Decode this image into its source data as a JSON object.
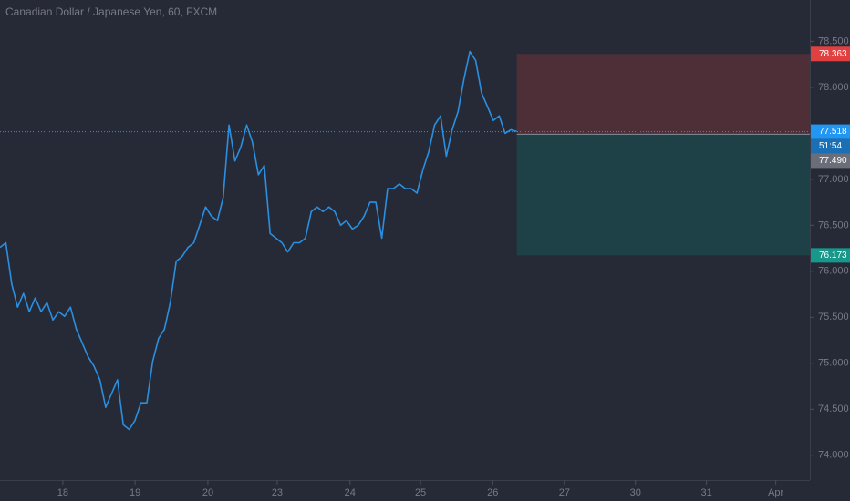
{
  "title": "Canadian Dollar / Japanese Yen, 60, FXCM",
  "chart_data": {
    "type": "line",
    "series": [
      {
        "name": "CADJPY",
        "color": "#2b8fe0",
        "values": [
          76.26,
          76.31,
          75.86,
          75.61,
          75.76,
          75.56,
          75.71,
          75.56,
          75.66,
          75.47,
          75.56,
          75.51,
          75.61,
          75.37,
          75.22,
          75.07,
          74.97,
          74.82,
          74.52,
          74.67,
          74.82,
          74.33,
          74.28,
          74.38,
          74.57,
          74.57,
          75.02,
          75.27,
          75.37,
          75.66,
          76.11,
          76.16,
          76.26,
          76.31,
          76.5,
          76.7,
          76.6,
          76.55,
          76.8,
          77.59,
          77.2,
          77.35,
          77.59,
          77.4,
          77.05,
          77.15,
          76.41,
          76.36,
          76.31,
          76.21,
          76.31,
          76.31,
          76.36,
          76.65,
          76.7,
          76.65,
          76.7,
          76.65,
          76.5,
          76.55,
          76.46,
          76.5,
          76.6,
          76.75,
          76.75,
          76.36,
          76.9,
          76.9,
          76.95,
          76.9,
          76.9,
          76.85,
          77.1,
          77.3,
          77.59,
          77.69,
          77.25,
          77.54,
          77.74,
          78.09,
          78.39,
          78.29,
          77.94,
          77.79,
          77.64,
          77.69,
          77.5,
          77.54,
          77.52
        ]
      }
    ],
    "xlim": [
      0,
      137.9
    ],
    "xticks": [
      {
        "value": 10.7,
        "label": "18"
      },
      {
        "value": 23.0,
        "label": "19"
      },
      {
        "value": 35.4,
        "label": "20"
      },
      {
        "value": 47.2,
        "label": "23"
      },
      {
        "value": 59.6,
        "label": "24"
      },
      {
        "value": 71.6,
        "label": "25"
      },
      {
        "value": 83.9,
        "label": "26"
      },
      {
        "value": 96.1,
        "label": "27"
      },
      {
        "value": 108.2,
        "label": "30"
      },
      {
        "value": 120.3,
        "label": "31"
      },
      {
        "value": 132.1,
        "label": "Apr"
      }
    ],
    "ylim": [
      73.73,
      78.95
    ],
    "yticks": [
      {
        "value": 74,
        "label": "74.000"
      },
      {
        "value": 74.5,
        "label": "74.500"
      },
      {
        "value": 75,
        "label": "75.000"
      },
      {
        "value": 75.5,
        "label": "75.500"
      },
      {
        "value": 76,
        "label": "76.000"
      },
      {
        "value": 76.5,
        "label": "76.500"
      },
      {
        "value": 77,
        "label": "77.000"
      },
      {
        "value": 77.5,
        "label": "77.500"
      },
      {
        "value": 78,
        "label": "78.000"
      },
      {
        "value": 78.5,
        "label": "78.500"
      }
    ],
    "position": {
      "start": 88,
      "stop": 78.363,
      "entry": {
        "value": 77.49,
        "label": "77.490"
      },
      "target": 76.173,
      "stop_color": "#4e2f37",
      "target_color": "#1e4147"
    },
    "last_price": {
      "value": 77.518,
      "countdown": "51:54",
      "color": "#2196f3"
    }
  }
}
